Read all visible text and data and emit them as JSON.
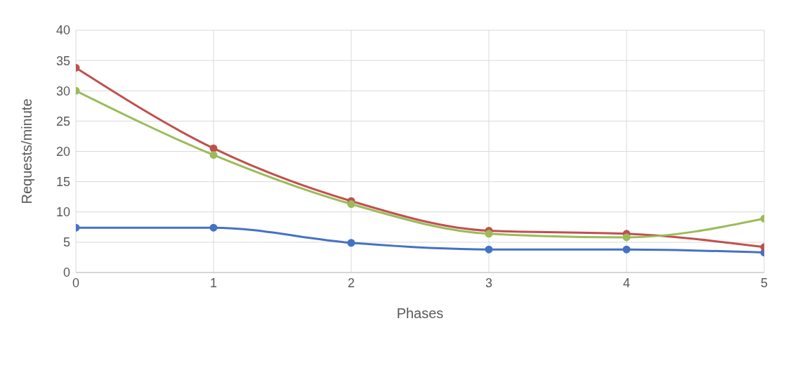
{
  "chart_data": {
    "type": "line",
    "xlabel": "Phases",
    "ylabel": "Requests/minute",
    "x": [
      0,
      1,
      2,
      3,
      4,
      5
    ],
    "series": [
      {
        "color": "#4472c4",
        "values": [
          7.4,
          7.4,
          4.9,
          3.8,
          3.8,
          3.3
        ]
      },
      {
        "color": "#c0504d",
        "values": [
          33.8,
          20.5,
          11.8,
          6.9,
          6.4,
          4.2
        ]
      },
      {
        "color": "#9bbb59",
        "values": [
          30,
          19.4,
          11.3,
          6.4,
          5.8,
          8.9
        ]
      }
    ],
    "xlim": [
      0,
      5
    ],
    "xticks": [
      0,
      1,
      2,
      3,
      4,
      5
    ],
    "ylim": [
      0,
      40
    ],
    "yticks": [
      0,
      5,
      10,
      15,
      20,
      25,
      30,
      35,
      40
    ],
    "grid": true,
    "marker": "circle",
    "line_style": "solid"
  }
}
